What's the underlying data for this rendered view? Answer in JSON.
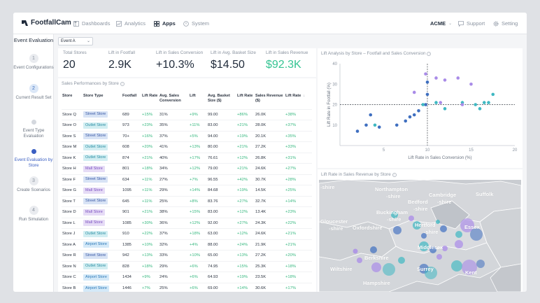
{
  "nav": {
    "brand": "FootfallCam",
    "brand_tm": "™",
    "items": [
      {
        "label": "Dashboards",
        "icon": "dashboard-icon"
      },
      {
        "label": "Analytics",
        "icon": "analytics-icon"
      },
      {
        "label": "Apps",
        "icon": "apps-grid-icon",
        "active": true
      },
      {
        "label": "System",
        "icon": "system-icon"
      }
    ],
    "account": "ACME",
    "support": "Support",
    "setting": "Setting"
  },
  "sidebar": {
    "title": "Event Evaluation",
    "steps": [
      {
        "number": "1",
        "label": "Event Configurations",
        "state": "done"
      },
      {
        "number": "2",
        "label": "Current Result Set",
        "state": "current"
      },
      {
        "number": "",
        "label": "Event Type Evaluation",
        "state": "pending"
      },
      {
        "number": "",
        "label": "Event Evaluation by Store",
        "state": "active"
      },
      {
        "number": "3",
        "label": "Create Scenarios",
        "state": "done"
      },
      {
        "number": "4",
        "label": "Run Simulation",
        "state": "done"
      }
    ]
  },
  "event_select": {
    "value": "Event A"
  },
  "kpis": [
    {
      "label": "Total Stores",
      "value": "20"
    },
    {
      "label": "Lift in Footfall",
      "value": "2.9K"
    },
    {
      "label": "Lift in Sales Conversion",
      "value": "+10.3%"
    },
    {
      "label": "Lift in Avg. Basket Size",
      "value": "$14.50"
    },
    {
      "label": "Lift in Sales Revenue",
      "value": "$92.3K",
      "highlight": true
    }
  ],
  "table": {
    "title": "Sales Performances by Store",
    "columns": [
      "Store",
      "Store Type",
      "Footfall",
      "Lift Rate",
      "Avg. Sales Conversion",
      "Lift",
      "Avg. Basket Size ($)",
      "Lift Rate",
      "Sales Revenue ($)",
      "Lift Rate"
    ],
    "sort_icon": "sort-down-icon",
    "rows": [
      [
        "Store Q",
        "Street Store",
        "689",
        "+15%",
        "31%",
        "+9%",
        "99.00",
        "+86%",
        "26.0K",
        "+38%"
      ],
      [
        "Store O",
        "Outlet Store",
        "973",
        "+23%",
        "35%",
        "+11%",
        "83.00",
        "+21%",
        "28.0K",
        "+37%"
      ],
      [
        "Store S",
        "Street Store",
        "70+",
        "+16%",
        "37%",
        "+5%",
        "94.00",
        "+19%",
        "20.1K",
        "+35%"
      ],
      [
        "Store M",
        "Outlet Store",
        "608",
        "+20%",
        "41%",
        "+13%",
        "80.00",
        "+21%",
        "27.2K",
        "+33%"
      ],
      [
        "Store K",
        "Outlet Store",
        "874",
        "+21%",
        "40%",
        "+17%",
        "76.61",
        "+12%",
        "26.8K",
        "+31%"
      ],
      [
        "Store H",
        "Mall Store",
        "801",
        "+18%",
        "34%",
        "+12%",
        "79.00",
        "+21%",
        "24.6K",
        "+27%"
      ],
      [
        "Store F",
        "Street Store",
        "634",
        "+11%",
        "27%",
        "+7%",
        "96.55",
        "+42%",
        "30.7K",
        "+28%"
      ],
      [
        "Store G",
        "Mall Store",
        "1095",
        "+11%",
        "29%",
        "+14%",
        "84.68",
        "+19%",
        "14.5K",
        "+25%"
      ],
      [
        "Store T",
        "Street Store",
        "645",
        "+11%",
        "25%",
        "+8%",
        "83.76",
        "+27%",
        "32.7K",
        "+14%"
      ],
      [
        "Store D",
        "Mall Store",
        "901",
        "+21%",
        "38%",
        "+15%",
        "83.00",
        "+12%",
        "13.4K",
        "+23%"
      ],
      [
        "Store L",
        "Mall Store",
        "1085",
        "+30%",
        "36%",
        "+12%",
        "92.00",
        "+27%",
        "24.3K",
        "+22%"
      ],
      [
        "Store J",
        "Outlet Store",
        "910",
        "+22%",
        "37%",
        "+18%",
        "63.00",
        "+12%",
        "24.6K",
        "+21%"
      ],
      [
        "Store A",
        "Airport Store",
        "1385",
        "+10%",
        "32%",
        "+4%",
        "88.00",
        "+24%",
        "21.9K",
        "+21%"
      ],
      [
        "Store R",
        "Street Store",
        "942",
        "+13%",
        "33%",
        "+10%",
        "65.00",
        "+13%",
        "27.2K",
        "+20%"
      ],
      [
        "Store N",
        "Outlet Store",
        "828",
        "+18%",
        "29%",
        "+6%",
        "74.95",
        "+15%",
        "25.3K",
        "+18%"
      ],
      [
        "Store C",
        "Airport Store",
        "1434",
        "+9%",
        "24%",
        "+6%",
        "64.93",
        "+19%",
        "23.5K",
        "+18%"
      ],
      [
        "Store B",
        "Airport Store",
        "1446",
        "+7%",
        "25%",
        "+6%",
        "69.00",
        "+14%",
        "30.6K",
        "+17%"
      ]
    ]
  },
  "scatter": {
    "title": "Lift Analysis by Store – Footfall and Sales Conversion",
    "colors": {
      "blue": "#3f6fc0",
      "teal": "#3fb8c2",
      "purple": "#a98be8"
    }
  },
  "chart_data": {
    "type": "scatter",
    "title": "Lift Analysis by Store – Footfall and Sales Conversion",
    "xlabel": "Lift Rate in Sales Conversion (%)",
    "ylabel": "Lift Rate in Footfall (%)",
    "xlim": [
      0,
      20
    ],
    "ylim": [
      0,
      40
    ],
    "xticks": [
      "5",
      "10",
      "15",
      "20"
    ],
    "yticks": [
      "10",
      "20",
      "30",
      "40"
    ],
    "reference_lines": {
      "x": 10,
      "y": 20
    },
    "series": [
      {
        "color": "blue",
        "points": [
          [
            2,
            7
          ],
          [
            3,
            10
          ],
          [
            3.5,
            15
          ],
          [
            4.5,
            9
          ],
          [
            6.5,
            10
          ],
          [
            7.5,
            12
          ],
          [
            8,
            14
          ],
          [
            8.5,
            15
          ],
          [
            9,
            17
          ],
          [
            9.8,
            20
          ],
          [
            10,
            25
          ],
          [
            10,
            31
          ]
        ]
      },
      {
        "color": "teal",
        "points": [
          [
            4,
            10
          ],
          [
            9.5,
            20
          ],
          [
            11,
            21
          ],
          [
            12,
            18
          ],
          [
            14,
            21
          ],
          [
            15.5,
            20
          ],
          [
            16,
            18
          ],
          [
            17,
            21
          ],
          [
            17.5,
            25
          ],
          [
            16.5,
            21
          ]
        ]
      },
      {
        "color": "purple",
        "points": [
          [
            8.5,
            26
          ],
          [
            9.8,
            35
          ],
          [
            11,
            33
          ],
          [
            11.5,
            21
          ],
          [
            12,
            32
          ],
          [
            13.5,
            33
          ],
          [
            14,
            20
          ],
          [
            15,
            30
          ]
        ]
      }
    ]
  },
  "map": {
    "title": "Lift Rate in Sales Revenue by Store",
    "labels": [
      "-shire",
      "Northampton",
      "-shire",
      "Cambridge",
      "-shire",
      "Suffolk",
      "Bedford",
      "-shire",
      "Buckingham",
      "-shire",
      "Hertford",
      "-shire",
      "Essex",
      "Gloucester",
      "-shire",
      "Oxfordshire",
      "Berkshire",
      "Middlesex",
      "Wiltshire",
      "Surrey",
      "Kent",
      "Hampshire"
    ]
  }
}
